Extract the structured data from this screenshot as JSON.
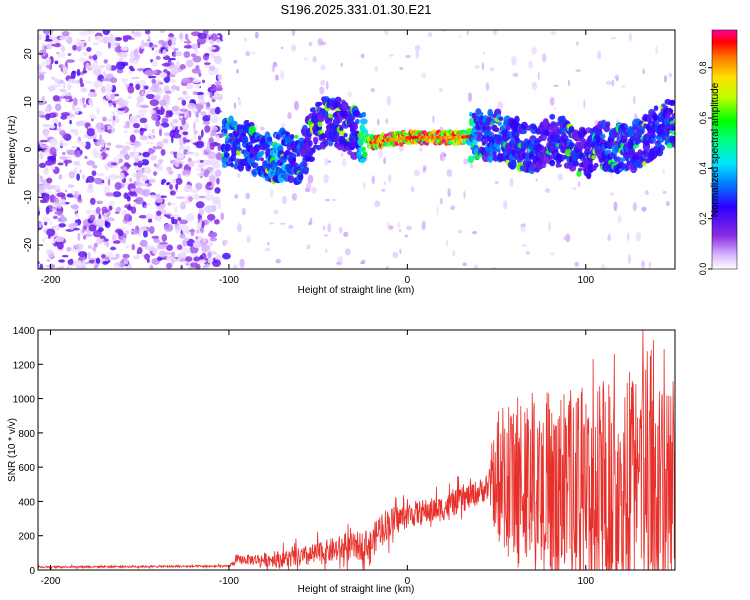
{
  "title": "S196.2025.331.01.30.E21",
  "colors": {
    "snr_line": "#e8302b",
    "axis": "#000000",
    "text": "#000000"
  },
  "chart_data": [
    {
      "type": "heatmap",
      "name": "spectrogram",
      "xlabel": "Height of straight line (km)",
      "ylabel": "Frequency (Hz)",
      "xlim": [
        -207,
        150
      ],
      "ylim": [
        -25,
        25
      ],
      "xticks": [
        -200,
        -100,
        0,
        100
      ],
      "xtick_labels": [
        "-200",
        "-100",
        "0",
        "100"
      ],
      "yticks": [
        -20,
        -10,
        0,
        10,
        20
      ],
      "ytick_labels": [
        "-20",
        "-10",
        "0",
        "10",
        "20"
      ],
      "colorbar": {
        "label": "Normalized spectral amplitude",
        "range": [
          0,
          0.95
        ],
        "ticks": [
          0,
          0.2,
          0.4,
          0.6,
          0.8
        ],
        "tick_labels": [
          "0.0",
          "0.2",
          "0.4",
          "0.6",
          "0.8"
        ]
      },
      "noise_region_x": [
        -207,
        -105
      ],
      "ridge": [
        {
          "x": -100,
          "f": 1.5,
          "amp": 0.35
        },
        {
          "x": -90,
          "f": 1,
          "amp": 0.3
        },
        {
          "x": -80,
          "f": -2,
          "amp": 0.35
        },
        {
          "x": -70,
          "f": -1,
          "amp": 0.4
        },
        {
          "x": -60,
          "f": -2,
          "amp": 0.3
        },
        {
          "x": -52,
          "f": 4,
          "amp": 0.25
        },
        {
          "x": -45,
          "f": 6.5,
          "amp": 0.3
        },
        {
          "x": -35,
          "f": 5,
          "amp": 0.25
        },
        {
          "x": -28,
          "f": 3,
          "amp": 0.3
        },
        {
          "x": -20,
          "f": 1.5,
          "amp": 0.85
        },
        {
          "x": -10,
          "f": 2,
          "amp": 0.9
        },
        {
          "x": 0,
          "f": 2.5,
          "amp": 0.9
        },
        {
          "x": 10,
          "f": 2.5,
          "amp": 0.9
        },
        {
          "x": 20,
          "f": 2.5,
          "amp": 0.9
        },
        {
          "x": 30,
          "f": 2.5,
          "amp": 0.85
        },
        {
          "x": 40,
          "f": 3,
          "amp": 0.3
        },
        {
          "x": 50,
          "f": 3,
          "amp": 0.35
        },
        {
          "x": 60,
          "f": 1.5,
          "amp": 0.3
        },
        {
          "x": 70,
          "f": 0,
          "amp": 0.3
        },
        {
          "x": 80,
          "f": 2,
          "amp": 0.25
        },
        {
          "x": 90,
          "f": 1,
          "amp": 0.3
        },
        {
          "x": 100,
          "f": -1,
          "amp": 0.25
        },
        {
          "x": 110,
          "f": 1,
          "amp": 0.3
        },
        {
          "x": 120,
          "f": 0,
          "amp": 0.35
        },
        {
          "x": 130,
          "f": 1,
          "amp": 0.3
        },
        {
          "x": 140,
          "f": 4,
          "amp": 0.3
        },
        {
          "x": 150,
          "f": 6,
          "amp": 0.3
        }
      ]
    },
    {
      "type": "line",
      "name": "snr",
      "xlabel": "Height of straight line (km)",
      "ylabel": "SNR (10 * v/v)",
      "xlim": [
        -207,
        150
      ],
      "ylim": [
        0,
        1400
      ],
      "xticks": [
        -200,
        -100,
        0,
        100
      ],
      "xtick_labels": [
        "-200",
        "-100",
        "0",
        "100"
      ],
      "yticks": [
        0,
        200,
        400,
        600,
        800,
        1000,
        1200,
        1400
      ],
      "ytick_labels": [
        "0",
        "200",
        "400",
        "600",
        "800",
        "1000",
        "1200",
        "1400"
      ],
      "envelope": [
        {
          "x": -207,
          "base": 18,
          "spread": 10
        },
        {
          "x": -100,
          "base": 22,
          "spread": 12
        },
        {
          "x": -95,
          "base": 60,
          "spread": 50
        },
        {
          "x": -80,
          "base": 60,
          "spread": 80
        },
        {
          "x": -60,
          "base": 70,
          "spread": 120
        },
        {
          "x": -40,
          "base": 120,
          "spread": 150
        },
        {
          "x": -20,
          "base": 150,
          "spread": 180
        },
        {
          "x": -15,
          "base": 250,
          "spread": 200
        },
        {
          "x": 0,
          "base": 320,
          "spread": 150
        },
        {
          "x": 20,
          "base": 360,
          "spread": 150
        },
        {
          "x": 35,
          "base": 430,
          "spread": 150
        },
        {
          "x": 45,
          "base": 480,
          "spread": 150
        },
        {
          "x": 48,
          "base": 500,
          "spread": 400
        },
        {
          "x": 60,
          "base": 420,
          "spread": 600
        },
        {
          "x": 80,
          "base": 400,
          "spread": 650
        },
        {
          "x": 100,
          "base": 380,
          "spread": 700
        },
        {
          "x": 120,
          "base": 400,
          "spread": 750
        },
        {
          "x": 135,
          "base": 420,
          "spread": 900
        },
        {
          "x": 150,
          "base": 380,
          "spread": 650
        }
      ],
      "peaks": [
        {
          "x": 132,
          "y": 1400
        },
        {
          "x": 138,
          "y": 1340
        },
        {
          "x": 116,
          "y": 1260
        },
        {
          "x": 104,
          "y": 1230
        },
        {
          "x": 144,
          "y": 1290
        },
        {
          "x": 149,
          "y": 1100
        }
      ]
    }
  ]
}
